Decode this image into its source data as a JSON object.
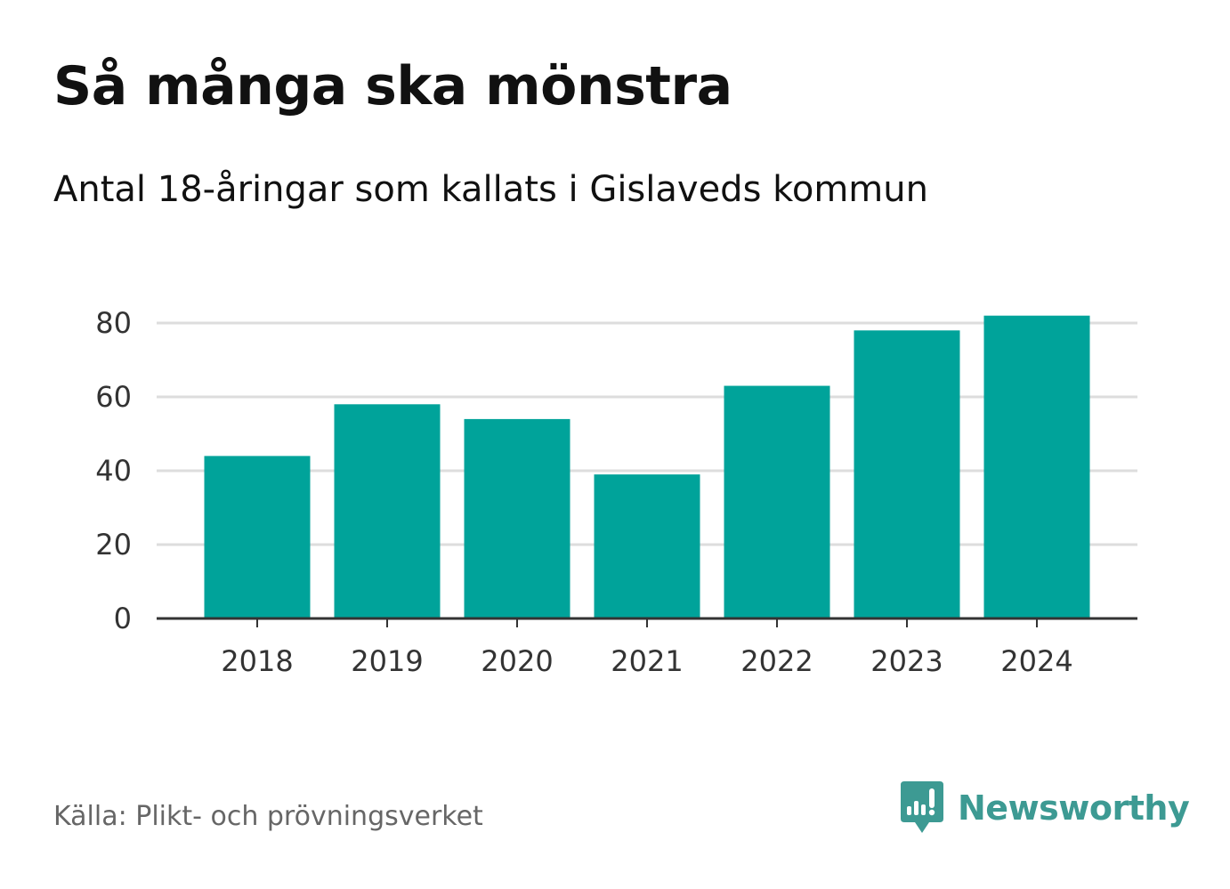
{
  "title": "Så många ska mönstra",
  "subtitle": "Antal 18-åringar som kallats i Gislaveds kommun",
  "source": "Källa: Plikt- och prövningsverket",
  "logo": {
    "text": "Newsworthy",
    "icon": "newsworthy-chart-bubble-icon"
  },
  "colors": {
    "bar": "#00a39a",
    "grid": "#dddddd",
    "axis": "#333333",
    "logo": "#3d9a93"
  },
  "chart_data": {
    "type": "bar",
    "categories": [
      "2018",
      "2019",
      "2020",
      "2021",
      "2022",
      "2023",
      "2024"
    ],
    "values": [
      44,
      58,
      54,
      39,
      63,
      78,
      82
    ],
    "title": "Så många ska mönstra",
    "subtitle": "Antal 18-åringar som kallats i Gislaveds kommun",
    "xlabel": "",
    "ylabel": "",
    "ylim": [
      0,
      80
    ],
    "yticks": [
      0,
      20,
      40,
      60,
      80
    ],
    "grid": true,
    "legend": "none"
  }
}
